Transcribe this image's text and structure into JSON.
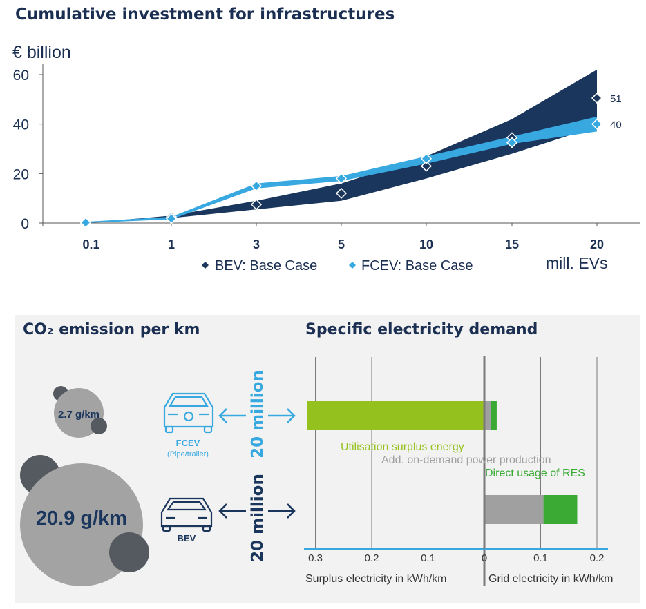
{
  "top_chart": {
    "title": "Cumulative investment for infrastructures",
    "unit_label": "€ billion",
    "x_axis_label": "mill. EVs",
    "y_ticks": [
      "0",
      "20",
      "40",
      "60"
    ],
    "legend": [
      "BEV: Base Case",
      "FCEV: Base Case"
    ],
    "colors": {
      "bev": "#1b365d",
      "fcev": "#37a8e0",
      "axis": "#555555"
    },
    "end_labels": [
      "51",
      "40"
    ]
  },
  "chart_data": [
    {
      "type": "area",
      "title": "Cumulative investment for infrastructures",
      "ylabel": "€ billion",
      "xlabel": "mill. EVs",
      "categories": [
        "0.1",
        "1",
        "3",
        "5",
        "10",
        "15",
        "20"
      ],
      "ylim": [
        0,
        60
      ],
      "legend_position": "bottom",
      "series": [
        {
          "name": "BEV: Base Case",
          "values": [
            0,
            2.5,
            7.5,
            12,
            23,
            34.5,
            50.5
          ],
          "low": [
            0,
            2,
            5.5,
            9,
            18,
            28,
            39
          ],
          "high": [
            0,
            3,
            9,
            16,
            27,
            42,
            62
          ]
        },
        {
          "name": "FCEV: Base Case",
          "values": [
            0.2,
            1.8,
            15,
            18,
            26,
            32.5,
            40
          ],
          "low": [
            0,
            1.5,
            14,
            17,
            24,
            32,
            37
          ],
          "high": [
            0.5,
            2.5,
            16,
            19,
            27,
            35,
            43
          ]
        }
      ]
    },
    {
      "type": "bar",
      "title": "Specific electricity demand",
      "x_ticks": [
        "0.3",
        "0.2",
        "0.1",
        "0",
        "0.1",
        "0.2"
      ],
      "xlim": [
        -0.32,
        0.21
      ],
      "xlabel_left": "Surplus electricity in kWh/km",
      "xlabel_right": "Grid electricity in kWh/km",
      "categories": [
        "FCEV",
        "BEV"
      ],
      "series": [
        {
          "name": "Utilisation surplus energy",
          "values": [
            -0.315,
            0
          ],
          "color": "#95c11f"
        },
        {
          "name": "Add. on-demand power production",
          "values": [
            0.012,
            0.105
          ],
          "color": "#a0a0a0"
        },
        {
          "name": "Direct usage of RES",
          "values": [
            0.01,
            0.06
          ],
          "color": "#3aaa35"
        }
      ]
    }
  ],
  "co2": {
    "title": "CO₂ emission per km",
    "fcev_value": "2.7 g/km",
    "bev_value": "20.9 g/km"
  },
  "electricity": {
    "title": "Specific electricity demand",
    "fcev_label": "FCEV",
    "fcev_sub": "(Pipe/trailer)",
    "bev_label": "BEV",
    "count_label_fcev": "20 million",
    "count_label_bev": "20 million"
  }
}
